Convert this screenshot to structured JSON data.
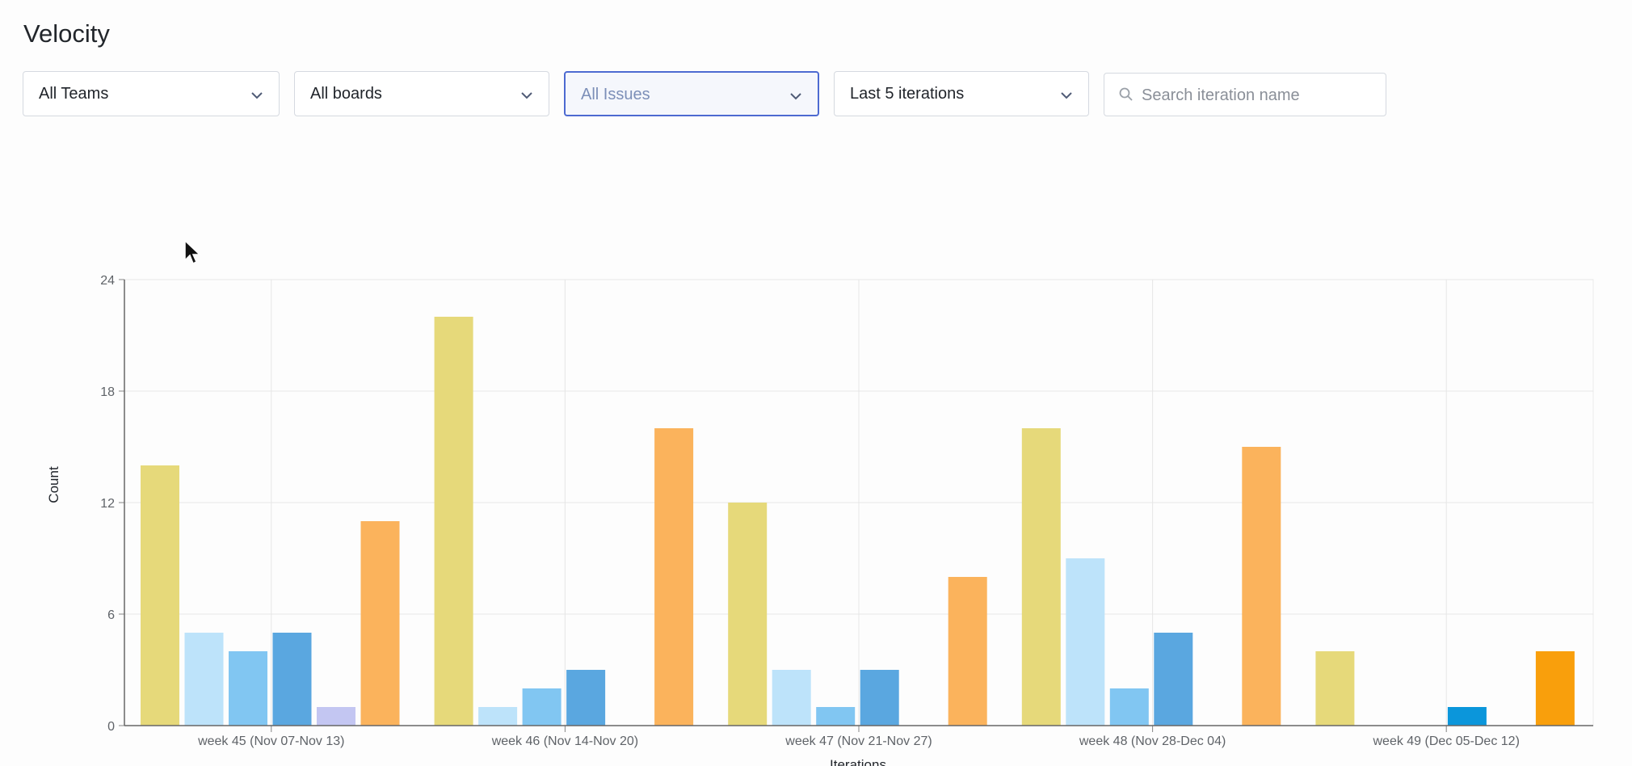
{
  "page": {
    "title": "Velocity"
  },
  "filters": {
    "teams": {
      "value": "All Teams",
      "icon": "chevron-down-icon"
    },
    "boards": {
      "value": "All boards",
      "icon": "chevron-down-icon"
    },
    "issues": {
      "value": "All Issues",
      "icon": "chevron-down-icon"
    },
    "iterations": {
      "value": "Last 5 iterations",
      "icon": "chevron-down-icon"
    },
    "search": {
      "placeholder": "Search iteration name",
      "value": "",
      "icon": "search-icon"
    }
  },
  "colors": {
    "accent": "#4d6ad1"
  },
  "chart_data": {
    "type": "bar",
    "title": "",
    "xlabel": "Iterations",
    "ylabel": "Count",
    "ylim": [
      0,
      24
    ],
    "yticks": [
      0,
      6,
      12,
      18,
      24
    ],
    "grid": true,
    "categories": [
      "week 45 (Nov 07-Nov 13)",
      "week 46 (Nov 14-Nov 20)",
      "week 47 (Nov 21-Nov 27)",
      "week 48 (Nov 28-Dec 04)",
      "week 49 (Dec 05-Dec 12)"
    ],
    "series": [
      {
        "color": "#e6d97a",
        "values": [
          14,
          22,
          12,
          16,
          4
        ]
      },
      {
        "color": "#bde3fa",
        "values": [
          5,
          1,
          3,
          9,
          0
        ]
      },
      {
        "color": "#81c6f2",
        "values": [
          4,
          2,
          1,
          2,
          0
        ]
      },
      {
        "color": "#5aa7e0",
        "values": [
          5,
          3,
          3,
          5,
          1
        ]
      },
      {
        "color": "#c3c6f2",
        "values": [
          1,
          0,
          0,
          0,
          0
        ]
      },
      {
        "color": "#fbb35c",
        "values": [
          11,
          16,
          8,
          15,
          4
        ]
      }
    ],
    "series_opacity": [
      0.65,
      0.65,
      0.65,
      0.65,
      0.65,
      0.65
    ],
    "last_category_opacity": 1.0,
    "last_category_colors": [
      "#e6d97a",
      "#bde3fa",
      "#81c6f2",
      "#0b96db",
      "#c3c6f2",
      "#f99f0c"
    ]
  }
}
